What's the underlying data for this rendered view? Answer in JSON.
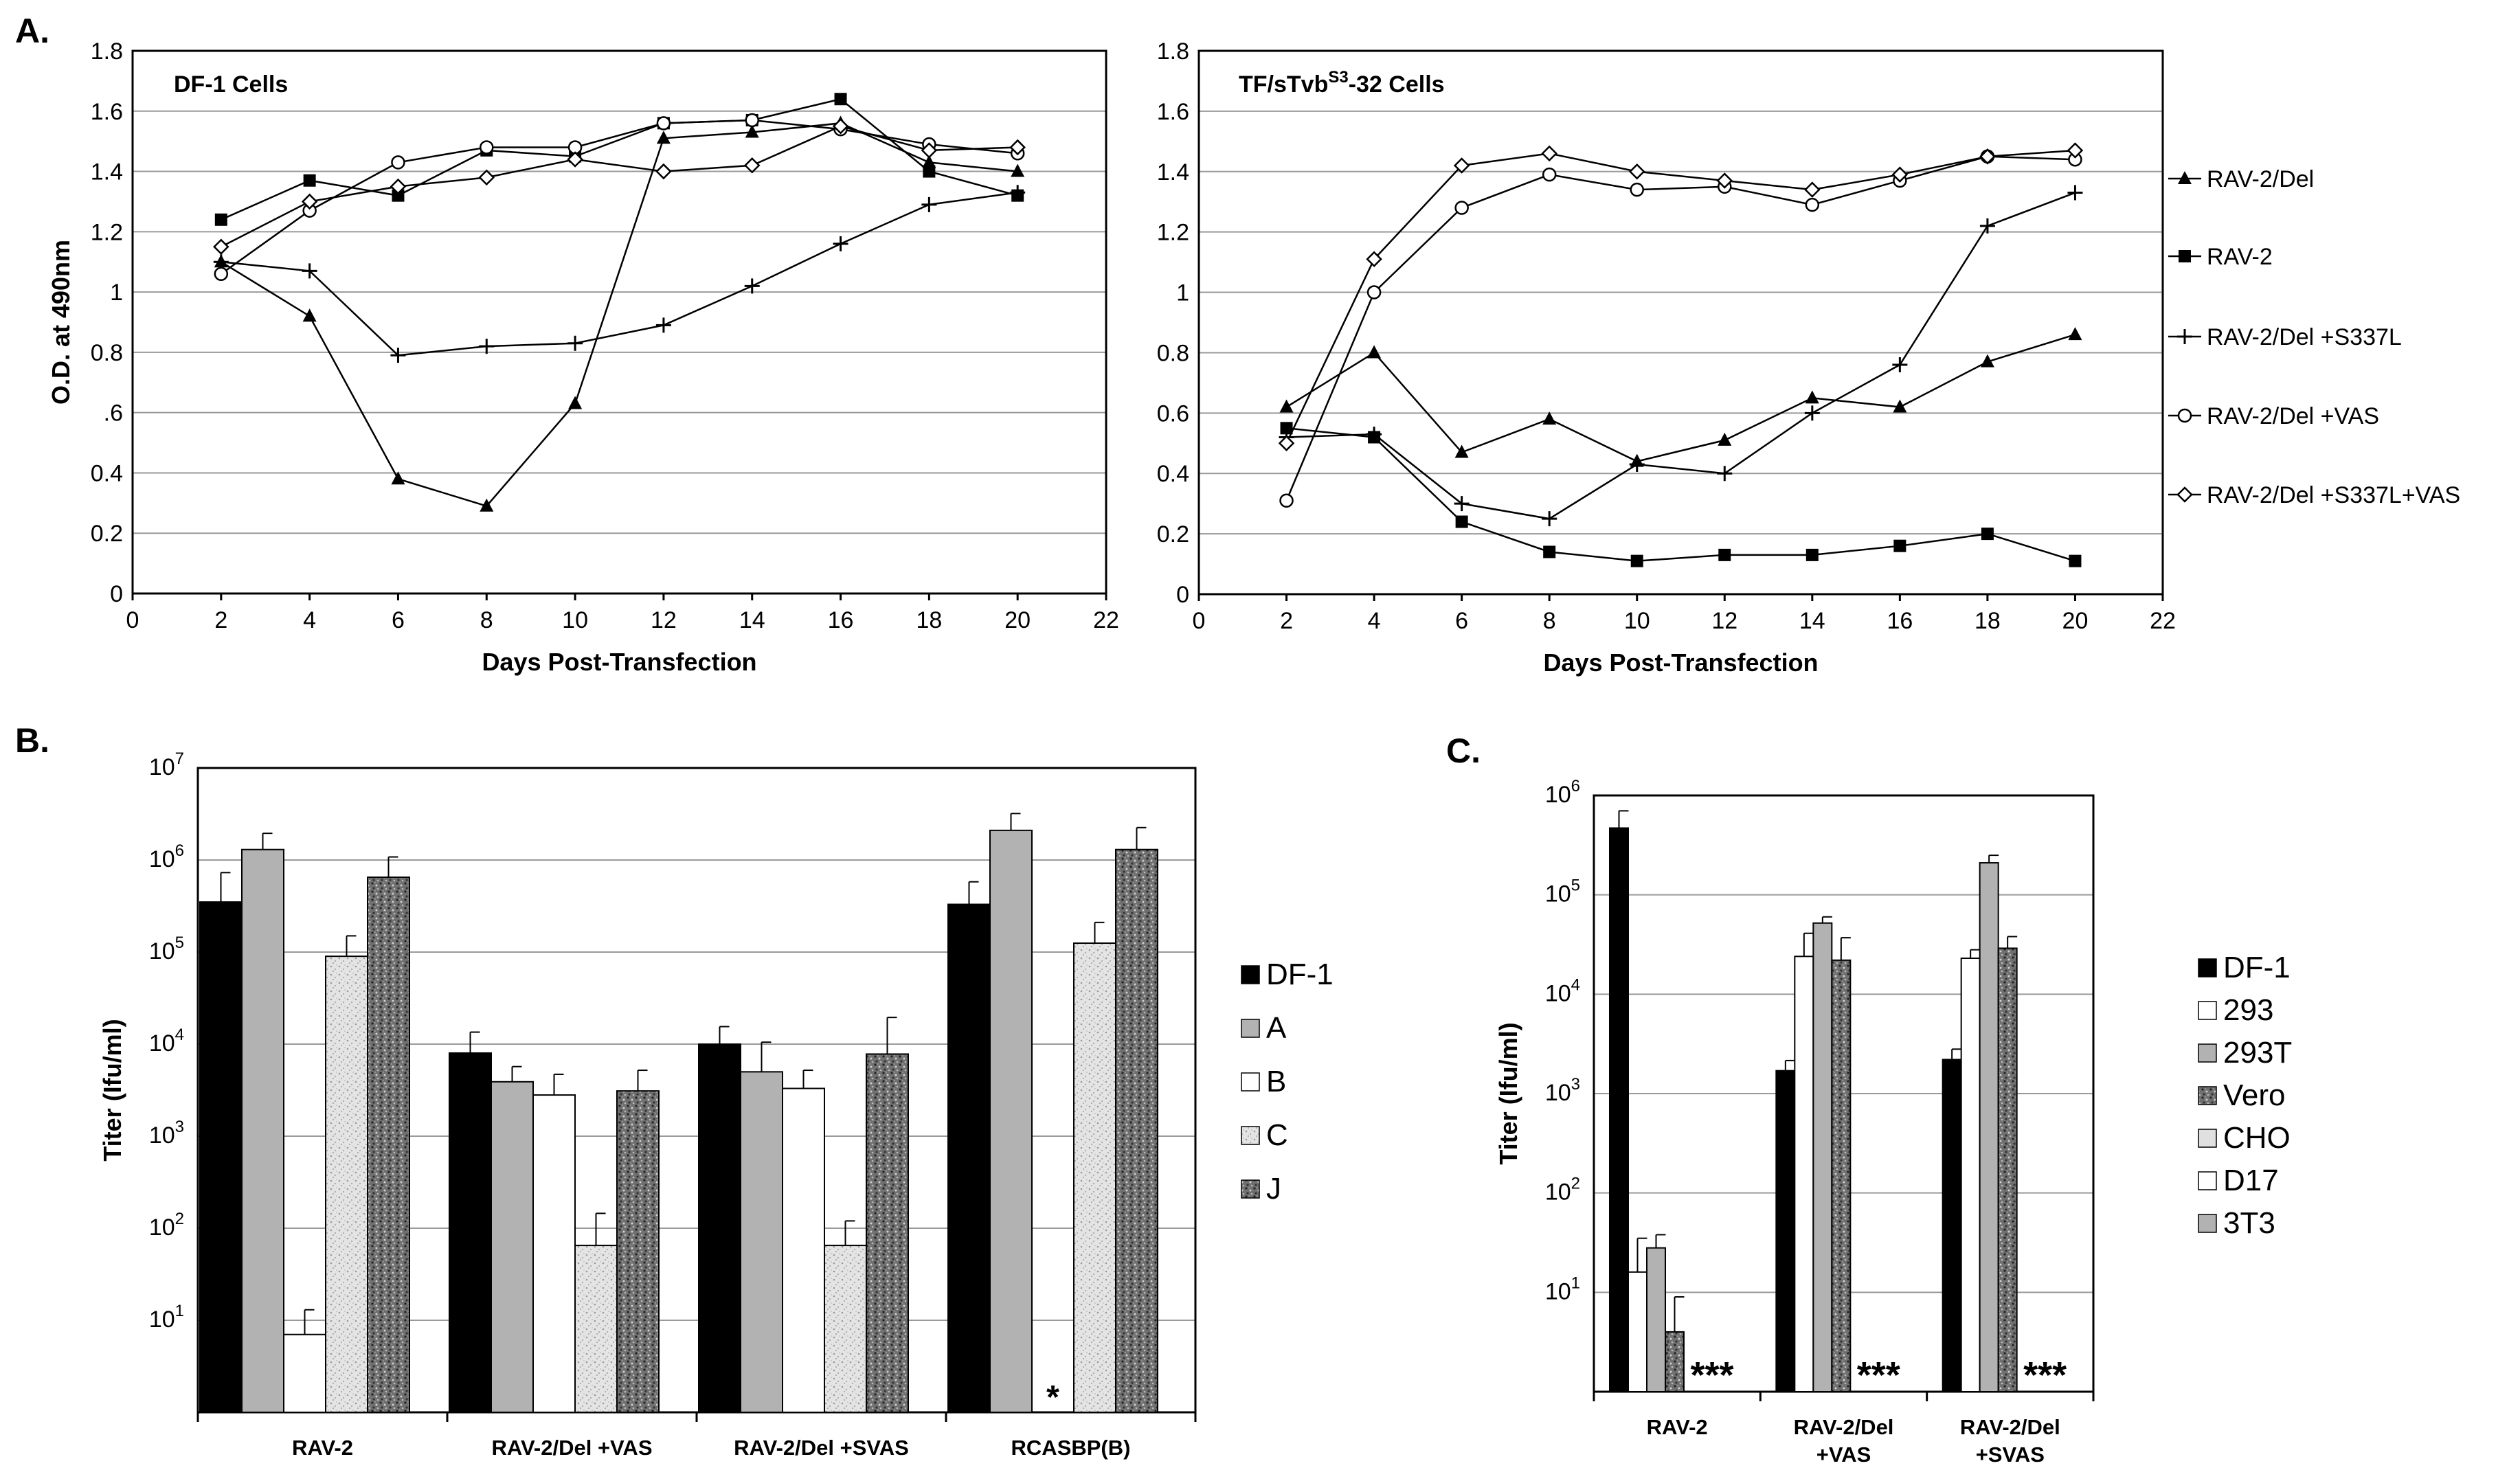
{
  "panels": {
    "a": "A.",
    "b": "B.",
    "c": "C."
  },
  "chart_data": [
    {
      "id": "A1",
      "type": "line",
      "title": "DF-1 Cells",
      "xlabel": "Days Post-Transfection",
      "ylabel": "O.D. at 490nm",
      "xlim": [
        0,
        22
      ],
      "ylim": [
        0,
        1.8
      ],
      "xticks": [
        "0",
        "2",
        "4",
        "6",
        "8",
        "10",
        "12",
        "14",
        "16",
        "18",
        "20",
        "22"
      ],
      "yticks": [
        "0",
        "0.2",
        "0.4",
        ".6",
        "0.8",
        "1",
        "1.2",
        "1.4",
        "1.6",
        "1.8"
      ],
      "x": [
        2,
        4,
        6,
        8,
        10,
        12,
        14,
        16,
        18,
        20
      ],
      "series": [
        {
          "name": "RAV-2/Del",
          "marker": "triangle",
          "values": [
            1.1,
            0.92,
            0.38,
            0.29,
            0.63,
            1.51,
            1.53,
            1.56,
            1.43,
            1.4
          ]
        },
        {
          "name": "RAV-2",
          "marker": "square",
          "values": [
            1.24,
            1.37,
            1.32,
            1.47,
            1.45,
            1.56,
            1.57,
            1.64,
            1.4,
            1.32
          ]
        },
        {
          "name": "RAV-2/Del +S337L",
          "marker": "plus",
          "values": [
            1.1,
            1.07,
            0.79,
            0.82,
            0.83,
            0.89,
            1.02,
            1.16,
            1.29,
            1.33
          ]
        },
        {
          "name": "RAV-2/Del +VAS",
          "marker": "circle",
          "values": [
            1.06,
            1.27,
            1.43,
            1.48,
            1.48,
            1.56,
            1.57,
            1.54,
            1.49,
            1.46
          ]
        },
        {
          "name": "RAV-2/Del +S337L+VAS",
          "marker": "diamond",
          "values": [
            1.15,
            1.3,
            1.35,
            1.38,
            1.44,
            1.4,
            1.42,
            1.55,
            1.47,
            1.48
          ]
        }
      ]
    },
    {
      "id": "A2",
      "type": "line",
      "title_prefix": "TF/sTvb",
      "title_sup": "S3",
      "title_suffix": "-32  Cells",
      "xlabel": "Days Post-Transfection",
      "ylabel": "",
      "xlim": [
        0,
        22
      ],
      "ylim": [
        0,
        1.8
      ],
      "xticks": [
        "0",
        "2",
        "4",
        "6",
        "8",
        "10",
        "12",
        "14",
        "16",
        "18",
        "20",
        "22"
      ],
      "yticks": [
        "0",
        "0.2",
        "0.4",
        "0.6",
        "0.8",
        "1",
        "1.2",
        "1.4",
        "1.6",
        "1.8"
      ],
      "x": [
        2,
        4,
        6,
        8,
        10,
        12,
        14,
        16,
        18,
        20
      ],
      "legend_position": "right",
      "series": [
        {
          "name": "RAV-2/Del",
          "marker": "triangle",
          "values": [
            0.62,
            0.8,
            0.47,
            0.58,
            0.44,
            0.51,
            0.65,
            0.62,
            0.77,
            0.86
          ]
        },
        {
          "name": "RAV-2",
          "marker": "square",
          "values": [
            0.55,
            0.52,
            0.24,
            0.14,
            0.11,
            0.13,
            0.13,
            0.16,
            0.2,
            0.11
          ]
        },
        {
          "name": "RAV-2/Del +S337L",
          "marker": "plus",
          "values": [
            0.52,
            0.53,
            0.3,
            0.25,
            0.43,
            0.4,
            0.6,
            0.76,
            1.22,
            1.33
          ]
        },
        {
          "name": "RAV-2/Del +VAS",
          "marker": "circle",
          "values": [
            0.31,
            1.0,
            1.28,
            1.39,
            1.34,
            1.35,
            1.29,
            1.37,
            1.45,
            1.44
          ]
        },
        {
          "name": "RAV-2/Del +S337L+VAS",
          "marker": "diamond",
          "values": [
            0.5,
            1.11,
            1.42,
            1.46,
            1.4,
            1.37,
            1.34,
            1.39,
            1.45,
            1.47
          ]
        }
      ],
      "legend_labels": [
        "RAV-2/Del",
        "RAV-2",
        "RAV-2/Del +S337L",
        "RAV-2/Del +VAS",
        "RAV-2/Del +S337L+VAS"
      ]
    },
    {
      "id": "B",
      "type": "bar",
      "yscale": "log",
      "ylabel": "Titer (Ifu/ml)",
      "ylim_exp": [
        0,
        7
      ],
      "ytick_base": "10",
      "ytick_exps": [
        "1",
        "2",
        "3",
        "4",
        "5",
        "6",
        "7"
      ],
      "categories": [
        "RAV-2",
        "RAV-2/Del +VAS",
        "RAV-2/Del +SVAS",
        "RCASBP(B)"
      ],
      "legend_position": "right",
      "series": [
        {
          "name": "DF-1",
          "pattern": "black",
          "values": [
            350000,
            8000,
            10000,
            330000
          ],
          "errors": [
            730000,
            13500,
            15500,
            580000
          ]
        },
        {
          "name": "A",
          "pattern": "gray",
          "values": [
            1300000,
            3900,
            5000,
            2100000
          ],
          "errors": [
            1950000,
            5700,
            10500,
            3200000
          ]
        },
        {
          "name": "B",
          "pattern": "white",
          "values": [
            7,
            2800,
            3300,
            null
          ],
          "errors": [
            13,
            4700,
            5200,
            null
          ]
        },
        {
          "name": "C",
          "pattern": "speckle-light",
          "values": [
            90000,
            65,
            65,
            125000
          ],
          "errors": [
            150000,
            145,
            120,
            210000
          ]
        },
        {
          "name": "J",
          "pattern": "speckle-dark",
          "values": [
            650000,
            3100,
            7800,
            1300000
          ],
          "errors": [
            1080000,
            5200,
            19500,
            2250000
          ]
        }
      ],
      "annotations": [
        "*"
      ]
    },
    {
      "id": "C",
      "type": "bar",
      "yscale": "log",
      "ylabel": "Titer (Ifu/ml)",
      "ylim_exp": [
        0,
        6
      ],
      "ytick_base": "10",
      "ytick_exps": [
        "1",
        "2",
        "3",
        "4",
        "5",
        "6"
      ],
      "categories": [
        "RAV-2",
        "RAV-2/Del\n+VAS",
        "RAV-2/Del\n+SVAS"
      ],
      "legend_position": "right",
      "series": [
        {
          "name": "DF-1",
          "pattern": "black",
          "values": [
            470000,
            1700,
            2200
          ],
          "errors": [
            700000,
            2150,
            2800
          ]
        },
        {
          "name": "293",
          "pattern": "white",
          "values": [
            16,
            24000,
            23000
          ],
          "errors": [
            35,
            41000,
            28000
          ]
        },
        {
          "name": "293T",
          "pattern": "gray",
          "values": [
            28,
            52000,
            210000
          ],
          "errors": [
            38,
            60000,
            250000
          ]
        },
        {
          "name": "Vero",
          "pattern": "speckle-dark",
          "values": [
            4,
            22000,
            29000
          ],
          "errors": [
            9,
            37000,
            38000
          ]
        },
        {
          "name": "CHO",
          "pattern": "light",
          "values": [
            null,
            null,
            null
          ]
        },
        {
          "name": "D17",
          "pattern": "white",
          "values": [
            null,
            null,
            null
          ]
        },
        {
          "name": "3T3",
          "pattern": "gray",
          "values": [
            null,
            null,
            null
          ]
        }
      ],
      "annotations": [
        "***",
        "***",
        "***"
      ]
    }
  ]
}
